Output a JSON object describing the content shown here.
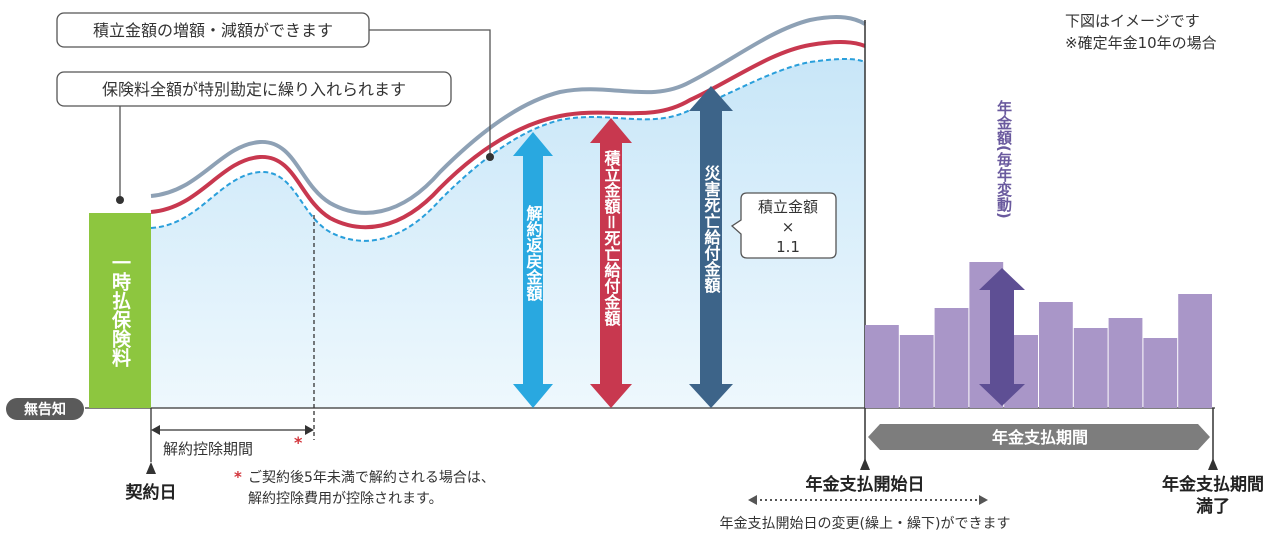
{
  "callouts": {
    "increase_decrease": "積立金額の増額・減額ができます",
    "special_account": "保険料全額が特別勘定に繰り入れられます",
    "accumulated_times": "積立金額",
    "times_sign": "×",
    "factor": "1.1"
  },
  "notes": {
    "image_only": "下図はイメージです",
    "fixed_term": "※確定年金10年の場合"
  },
  "labels": {
    "single_premium": "一時払保険料",
    "surrender_value": "解約返戻金額",
    "accumulated_eq_death": "積立金額＝死亡給付金額",
    "accident_death": "災害死亡給付金額",
    "annual_pension": "年金額(毎年変動)",
    "no_notice": "無告知",
    "surrender_deduction_period": "解約控除期間",
    "asterisk": "*",
    "deduction_note_line1": "ご契約後5年未満で解約される場合は、",
    "deduction_note_line2": "解約控除費用が控除されます。",
    "contract_date": "契約日",
    "payout_start": "年金支払開始日",
    "payout_period": "年金支払期間",
    "payout_end_line1": "年金支払期間",
    "payout_end_line2": "満了",
    "change_start_date": "年金支払開始日の変更(繰上・繰下)ができます"
  },
  "colors": {
    "premium_green": "#8dc63f",
    "surrender_blue": "#29a8e0",
    "death_red": "#c8384f",
    "accident_navy": "#3d6489",
    "pension_purple": "#a996c8",
    "pension_arrow": "#5e4f94",
    "sky_fill": "#d4ecfa",
    "line_gray": "#8ea1b5",
    "period_gray": "#7d7d7d"
  }
}
